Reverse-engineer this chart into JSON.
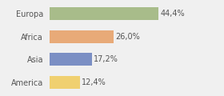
{
  "categories": [
    "Europa",
    "Africa",
    "Asia",
    "America"
  ],
  "values": [
    44.4,
    26.0,
    17.2,
    12.4
  ],
  "labels": [
    "44,4%",
    "26,0%",
    "17,2%",
    "12,4%"
  ],
  "bar_colors": [
    "#a8bc8a",
    "#e8aa78",
    "#7b8fc4",
    "#f0d070"
  ],
  "background_color": "#f0f0f0",
  "label_fontsize": 7,
  "category_fontsize": 7,
  "xlim": [
    0,
    60
  ]
}
